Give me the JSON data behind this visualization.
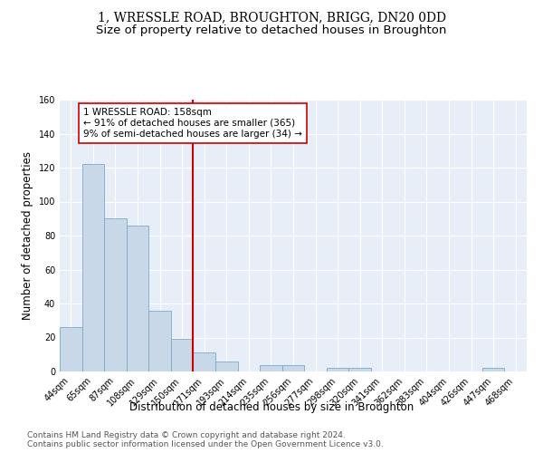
{
  "title": "1, WRESSLE ROAD, BROUGHTON, BRIGG, DN20 0DD",
  "subtitle": "Size of property relative to detached houses in Broughton",
  "xlabel": "Distribution of detached houses by size in Broughton",
  "ylabel": "Number of detached properties",
  "categories": [
    "44sqm",
    "65sqm",
    "87sqm",
    "108sqm",
    "129sqm",
    "150sqm",
    "171sqm",
    "193sqm",
    "214sqm",
    "235sqm",
    "256sqm",
    "277sqm",
    "298sqm",
    "320sqm",
    "341sqm",
    "362sqm",
    "383sqm",
    "404sqm",
    "426sqm",
    "447sqm",
    "468sqm"
  ],
  "values": [
    26,
    122,
    90,
    86,
    36,
    19,
    11,
    6,
    0,
    4,
    4,
    0,
    2,
    2,
    0,
    0,
    0,
    0,
    0,
    2,
    0
  ],
  "bar_color": "#c8d8e8",
  "bar_edge_color": "#7aaac8",
  "vline_x": 5.5,
  "vline_color": "#cc0000",
  "annotation_text": "1 WRESSLE ROAD: 158sqm\n← 91% of detached houses are smaller (365)\n9% of semi-detached houses are larger (34) →",
  "annotation_box_color": "#ffffff",
  "annotation_box_edge": "#cc0000",
  "ylim": [
    0,
    160
  ],
  "yticks": [
    0,
    20,
    40,
    60,
    80,
    100,
    120,
    140,
    160
  ],
  "footer_line1": "Contains HM Land Registry data © Crown copyright and database right 2024.",
  "footer_line2": "Contains public sector information licensed under the Open Government Licence v3.0.",
  "background_color": "#e8eef8",
  "plot_background": "#ffffff",
  "title_fontsize": 10,
  "subtitle_fontsize": 9.5,
  "axis_label_fontsize": 8.5,
  "tick_fontsize": 7,
  "footer_fontsize": 6.5,
  "annotation_fontsize": 7.5
}
